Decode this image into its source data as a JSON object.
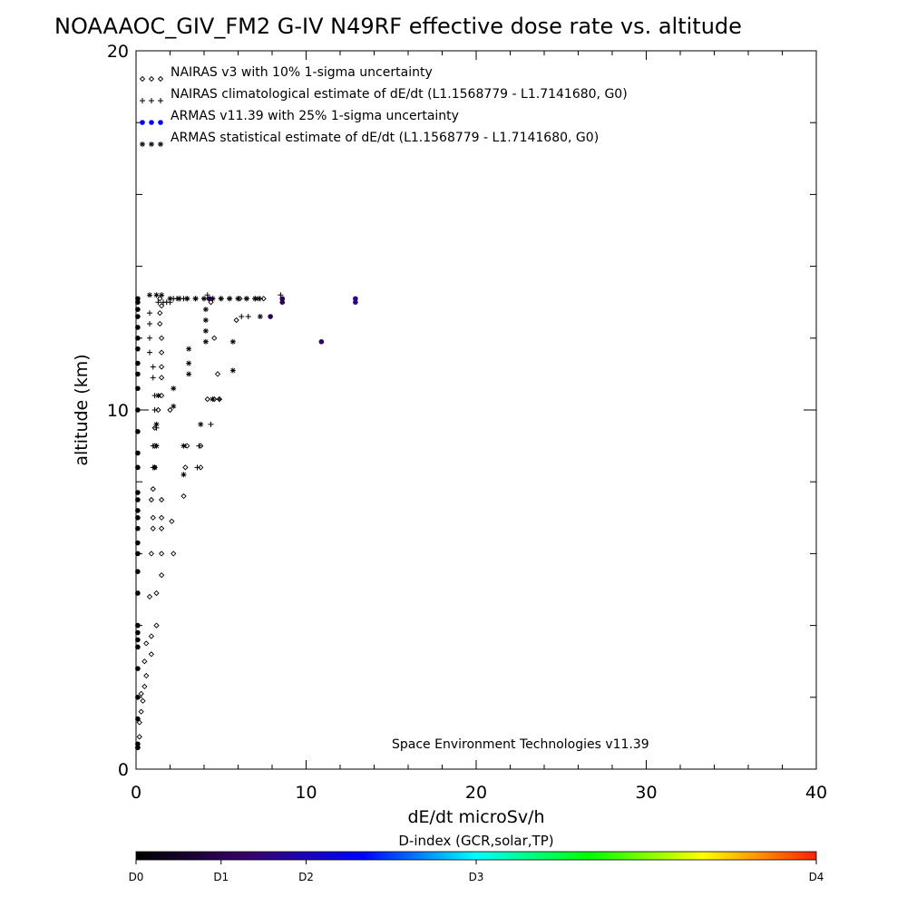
{
  "chart_data": {
    "type": "scatter",
    "title": "NOAAAOC_GIV_FM2 G-IV   N49RF  effective dose rate vs. altitude",
    "xlabel": "dE/dt microSv/h",
    "ylabel": "altitude (km)",
    "xlim": [
      0,
      40
    ],
    "ylim": [
      0,
      20
    ],
    "x_ticks": [
      "0",
      "10",
      "20",
      "30",
      "40"
    ],
    "y_ticks": [
      "0",
      "10",
      "20"
    ],
    "legend_position": "top-left",
    "credit": "Space Environment Technologies v11.39",
    "colorbar": {
      "title": "D-index (GCR,solar,TP)",
      "labels": [
        "D0",
        "D1",
        "D2",
        "D3",
        "D4"
      ],
      "label_values": [
        0,
        0.5,
        1.0,
        2.0,
        4.0
      ],
      "range": [
        0,
        4
      ],
      "colors": [
        "#000000",
        "#3a0070",
        "#0000ff",
        "#00ffff",
        "#00ff00",
        "#ffff00",
        "#ff2000"
      ]
    },
    "series": [
      {
        "name": "NAIRAS v3 with 10% 1-sigma uncertainty",
        "marker": "diamond",
        "color": "#000000",
        "points": [
          [
            0.1,
            0.6
          ],
          [
            0.2,
            0.9
          ],
          [
            0.2,
            1.3
          ],
          [
            0.3,
            1.6
          ],
          [
            0.4,
            1.9
          ],
          [
            0.3,
            2.1
          ],
          [
            0.5,
            2.3
          ],
          [
            0.6,
            2.6
          ],
          [
            0.5,
            3.0
          ],
          [
            0.9,
            3.2
          ],
          [
            0.6,
            3.5
          ],
          [
            0.9,
            3.7
          ],
          [
            1.2,
            4.0
          ],
          [
            0.8,
            4.8
          ],
          [
            1.2,
            4.9
          ],
          [
            1.5,
            5.4
          ],
          [
            0.9,
            6.0
          ],
          [
            1.5,
            6.0
          ],
          [
            2.2,
            6.0
          ],
          [
            1.0,
            6.7
          ],
          [
            1.5,
            6.7
          ],
          [
            1.0,
            7.0
          ],
          [
            1.5,
            7.0
          ],
          [
            2.1,
            6.9
          ],
          [
            0.9,
            7.5
          ],
          [
            1.5,
            7.5
          ],
          [
            1.0,
            7.8
          ],
          [
            2.8,
            7.6
          ],
          [
            1.1,
            8.4
          ],
          [
            2.9,
            8.4
          ],
          [
            3.8,
            8.4
          ],
          [
            1.1,
            9.0
          ],
          [
            3.0,
            9.0
          ],
          [
            3.8,
            9.0
          ],
          [
            1.1,
            9.5
          ],
          [
            1.3,
            10.0
          ],
          [
            2.0,
            10.0
          ],
          [
            1.5,
            10.4
          ],
          [
            1.5,
            10.9
          ],
          [
            1.5,
            11.2
          ],
          [
            1.5,
            11.6
          ],
          [
            1.5,
            12.0
          ],
          [
            1.4,
            12.4
          ],
          [
            1.4,
            12.7
          ],
          [
            1.5,
            12.9
          ],
          [
            1.4,
            13.1
          ],
          [
            4.2,
            10.3
          ],
          [
            4.6,
            10.3
          ],
          [
            4.9,
            10.3
          ],
          [
            4.8,
            11.0
          ],
          [
            4.6,
            12.0
          ],
          [
            5.9,
            12.5
          ],
          [
            4.4,
            13.0
          ],
          [
            6.1,
            13.1
          ],
          [
            7.5,
            13.1
          ]
        ]
      },
      {
        "name": "NAIRAS climatological estimate of dE/dt (L1.1568779 - L1.7141680, G0)",
        "marker": "plus",
        "color": "#000000",
        "points": [
          [
            0.8,
            12.7
          ],
          [
            0.8,
            12.4
          ],
          [
            0.8,
            12.0
          ],
          [
            0.8,
            11.6
          ],
          [
            1.0,
            11.2
          ],
          [
            1.0,
            10.9
          ],
          [
            1.1,
            10.4
          ],
          [
            1.1,
            10.0
          ],
          [
            1.2,
            9.5
          ],
          [
            1.0,
            9.0
          ],
          [
            1.0,
            8.4
          ],
          [
            1.3,
            13.0
          ],
          [
            1.6,
            13.0
          ],
          [
            1.8,
            13.0
          ],
          [
            2.0,
            13.0
          ],
          [
            2.2,
            13.1
          ],
          [
            2.4,
            13.1
          ],
          [
            2.6,
            13.1
          ],
          [
            2.8,
            13.1
          ],
          [
            3.0,
            13.1
          ],
          [
            3.5,
            13.1
          ],
          [
            4.0,
            13.1
          ],
          [
            4.5,
            13.1
          ],
          [
            5.0,
            13.1
          ],
          [
            5.5,
            13.1
          ],
          [
            6.0,
            13.1
          ],
          [
            6.5,
            13.1
          ],
          [
            7.0,
            13.1
          ],
          [
            7.3,
            13.1
          ],
          [
            3.6,
            8.4
          ],
          [
            3.7,
            9.0
          ],
          [
            4.4,
            9.6
          ],
          [
            4.9,
            10.3
          ],
          [
            6.2,
            12.6
          ],
          [
            6.6,
            12.6
          ],
          [
            4.2,
            13.2
          ],
          [
            8.5,
            13.2
          ]
        ]
      },
      {
        "name": "ARMAS v11.39 with 25% 1-sigma uncertainty",
        "marker": "dot",
        "color": "#0000ff",
        "points": [
          [
            0.1,
            0.6
          ],
          [
            0.1,
            0.7
          ],
          [
            0.1,
            1.4
          ],
          [
            0.1,
            2.0
          ],
          [
            0.1,
            2.8
          ],
          [
            0.1,
            3.4
          ],
          [
            0.1,
            3.6
          ],
          [
            0.1,
            3.8
          ],
          [
            0.1,
            4.0
          ],
          [
            0.1,
            4.9
          ],
          [
            0.1,
            5.5
          ],
          [
            0.1,
            6.0
          ],
          [
            0.1,
            6.3
          ],
          [
            0.1,
            6.7
          ],
          [
            0.1,
            7.0
          ],
          [
            0.1,
            7.2
          ],
          [
            0.1,
            7.5
          ],
          [
            0.1,
            7.7
          ],
          [
            0.1,
            8.4
          ],
          [
            0.1,
            8.8
          ],
          [
            0.1,
            9.4
          ],
          [
            0.1,
            10.0
          ],
          [
            0.1,
            10.6
          ],
          [
            0.1,
            11.0
          ],
          [
            0.1,
            11.3
          ],
          [
            0.1,
            11.7
          ],
          [
            0.1,
            12.0
          ],
          [
            0.1,
            12.3
          ],
          [
            0.1,
            12.6
          ],
          [
            0.1,
            12.8
          ],
          [
            0.1,
            13.0
          ],
          [
            0.1,
            13.1
          ],
          [
            4.3,
            13.1
          ],
          [
            8.6,
            13.1
          ],
          [
            8.6,
            13.0
          ],
          [
            7.9,
            12.6
          ],
          [
            10.9,
            11.9
          ],
          [
            12.9,
            13.1
          ],
          [
            12.9,
            13.0
          ]
        ],
        "dindex": [
          0,
          0,
          0,
          0,
          0,
          0,
          0,
          0,
          0,
          0,
          0,
          0,
          0,
          0,
          0,
          0,
          0,
          0,
          0,
          0,
          0,
          0,
          0,
          0,
          0,
          0,
          0,
          0,
          0,
          0,
          0,
          0,
          0.45,
          0.5,
          0.5,
          0.45,
          0.55,
          0.8,
          0.8
        ]
      },
      {
        "name": "ARMAS statistical estimate of dE/dt (L1.1568779 - L1.7141680, G0)",
        "marker": "asterisk",
        "color": "#000000",
        "points": [
          [
            0.8,
            13.2
          ],
          [
            1.2,
            13.2
          ],
          [
            1.5,
            13.2
          ],
          [
            2.0,
            13.1
          ],
          [
            2.5,
            13.1
          ],
          [
            3.0,
            13.1
          ],
          [
            3.5,
            13.1
          ],
          [
            4.0,
            13.1
          ],
          [
            4.5,
            13.1
          ],
          [
            5.0,
            13.1
          ],
          [
            5.5,
            13.1
          ],
          [
            6.0,
            13.1
          ],
          [
            6.5,
            13.1
          ],
          [
            7.0,
            13.1
          ],
          [
            7.2,
            13.1
          ],
          [
            4.1,
            12.8
          ],
          [
            4.1,
            12.5
          ],
          [
            4.1,
            12.2
          ],
          [
            4.1,
            11.9
          ],
          [
            5.7,
            11.9
          ],
          [
            7.3,
            12.6
          ],
          [
            3.1,
            11.7
          ],
          [
            3.1,
            11.3
          ],
          [
            3.1,
            11.0
          ],
          [
            5.7,
            11.1
          ],
          [
            2.2,
            10.6
          ],
          [
            2.2,
            10.1
          ],
          [
            4.5,
            10.3
          ],
          [
            3.8,
            9.6
          ],
          [
            1.2,
            9.0
          ],
          [
            2.8,
            9.0
          ],
          [
            1.1,
            8.4
          ],
          [
            2.8,
            8.2
          ],
          [
            1.2,
            9.6
          ],
          [
            1.3,
            10.4
          ]
        ]
      }
    ]
  }
}
